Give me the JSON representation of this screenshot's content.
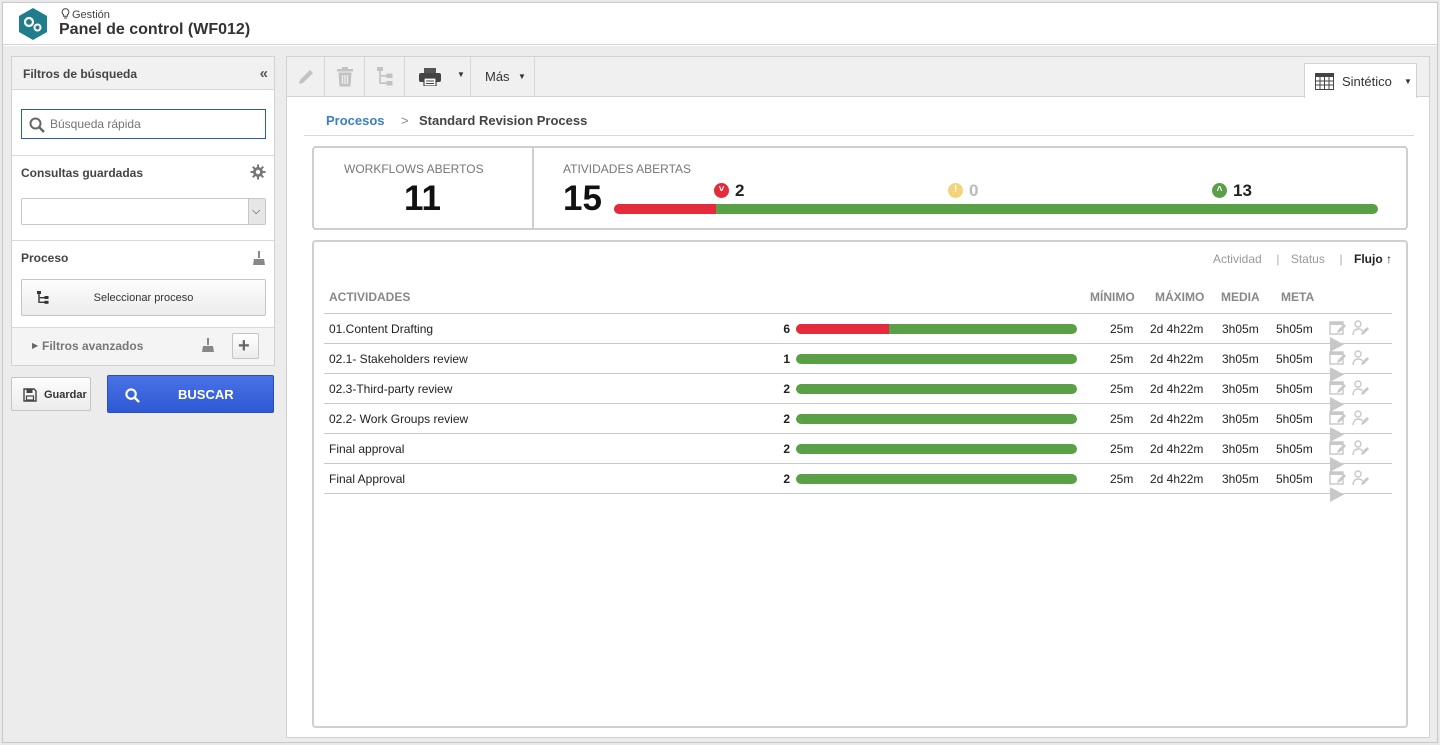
{
  "header": {
    "section": "Gestión",
    "title": "Panel de control (WF012)"
  },
  "filters": {
    "title": "Filtros de búsqueda",
    "collapse_glyph": "«",
    "search_placeholder": "Búsqueda rápida",
    "saved_queries_label": "Consultas guardadas",
    "saved_query_value": "",
    "process_label": "Proceso",
    "select_process_button": "Seleccionar proceso",
    "advanced_filters_label": "Filtros avanzados",
    "save_button": "Guardar",
    "search_button": "BUSCAR"
  },
  "toolbar": {
    "more_label": "Más",
    "view_label": "Sintético"
  },
  "breadcrumb": {
    "root": "Procesos",
    "separator": ">",
    "current": "Standard Revision Process"
  },
  "summary": {
    "workflows_label": "WORKFLOWS ABERTOS",
    "workflows_value": "11",
    "activities_label": "ATIVIDADES ABERTAS",
    "activities_value": "15",
    "late_count": "2",
    "warning_count": "0",
    "on_time_count": "13",
    "late_fraction": 0.1333,
    "colors": {
      "late": "#e52b3b",
      "warning": "#f3d479",
      "on_time": "#5aa046"
    }
  },
  "sort": {
    "options": [
      "Actividad",
      "Status"
    ],
    "active": "Flujo",
    "active_arrow": "↑"
  },
  "table": {
    "columns": {
      "activities": "ACTIVIDADES",
      "min": "MÍNIMO",
      "max": "MÁXIMO",
      "avg": "MEDIA",
      "goal": "META"
    },
    "rows": [
      {
        "name": "01.Content Drafting",
        "count": "6",
        "late_fraction": 0.33,
        "min": "25m",
        "max": "2d 4h22m",
        "avg": "3h05m",
        "goal": "5h05m"
      },
      {
        "name": "02.1- Stakeholders review",
        "count": "1",
        "late_fraction": 0,
        "min": "25m",
        "max": "2d 4h22m",
        "avg": "3h05m",
        "goal": "5h05m"
      },
      {
        "name": "02.3-Third-party review",
        "count": "2",
        "late_fraction": 0,
        "min": "25m",
        "max": "2d 4h22m",
        "avg": "3h05m",
        "goal": "5h05m"
      },
      {
        "name": "02.2- Work Groups review",
        "count": "2",
        "late_fraction": 0,
        "min": "25m",
        "max": "2d 4h22m",
        "avg": "3h05m",
        "goal": "5h05m"
      },
      {
        "name": "Final approval",
        "count": "2",
        "late_fraction": 0,
        "min": "25m",
        "max": "2d 4h22m",
        "avg": "3h05m",
        "goal": "5h05m"
      },
      {
        "name": "Final Approval",
        "count": "2",
        "late_fraction": 0,
        "min": "25m",
        "max": "2d 4h22m",
        "avg": "3h05m",
        "goal": "5h05m"
      }
    ]
  }
}
